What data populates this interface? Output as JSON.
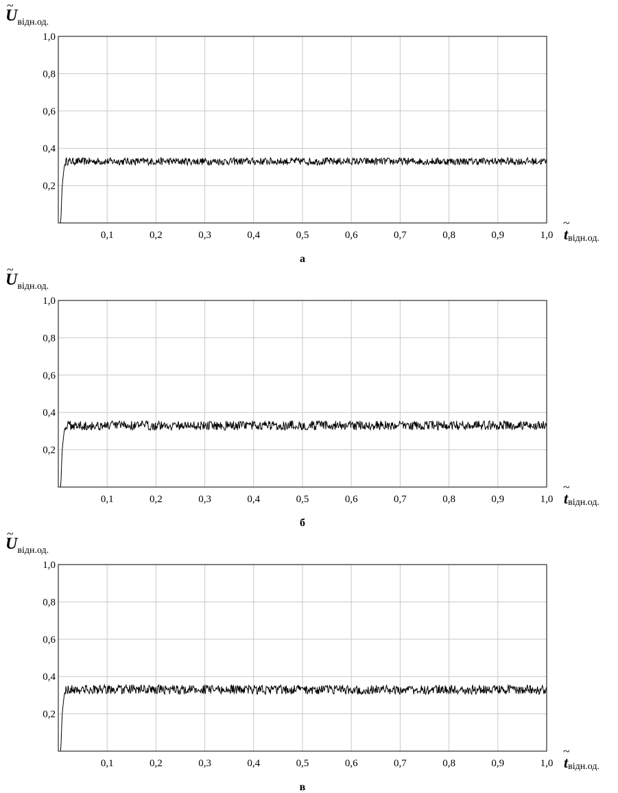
{
  "chart_data": [
    {
      "type": "line",
      "panel_label": "а",
      "ylabel": {
        "symbol": "U",
        "subscript": "відн.од."
      },
      "xlabel": {
        "symbol": "t",
        "subscript": "відн.од."
      },
      "xlim": [
        0,
        1.0
      ],
      "ylim": [
        0,
        1.0
      ],
      "x_ticks": [
        0.1,
        0.2,
        0.3,
        0.4,
        0.5,
        0.6,
        0.7,
        0.8,
        0.9,
        1.0
      ],
      "x_tick_labels": [
        "0,1",
        "0,2",
        "0,3",
        "0,4",
        "0,5",
        "0,6",
        "0,7",
        "0,8",
        "0,9",
        "1,0"
      ],
      "y_ticks": [
        0.2,
        0.4,
        0.6,
        0.8,
        1.0
      ],
      "y_tick_labels": [
        "0,2",
        "0,4",
        "0,6",
        "0,8",
        "1,0"
      ],
      "grid": true,
      "series": [
        {
          "color": "#000000",
          "x": [
            0,
            0.005,
            0.008,
            0.01,
            0.012,
            0.015,
            0.02,
            0.1,
            0.2,
            0.3,
            0.4,
            0.5,
            0.6,
            0.7,
            0.8,
            0.9,
            1.0
          ],
          "y": [
            0,
            0,
            0.2,
            0.25,
            0.3,
            0.33,
            0.33,
            0.33,
            0.33,
            0.33,
            0.33,
            0.33,
            0.33,
            0.33,
            0.33,
            0.33,
            0.33
          ],
          "noise_amplitude": 0.02
        }
      ]
    },
    {
      "type": "line",
      "panel_label": "б",
      "ylabel": {
        "symbol": "U",
        "subscript": "відн.од."
      },
      "xlabel": {
        "symbol": "t",
        "subscript": "відн.од."
      },
      "xlim": [
        0,
        1.0
      ],
      "ylim": [
        0,
        1.0
      ],
      "x_ticks": [
        0.1,
        0.2,
        0.3,
        0.4,
        0.5,
        0.6,
        0.7,
        0.8,
        0.9,
        1.0
      ],
      "x_tick_labels": [
        "0,1",
        "0,2",
        "0,3",
        "0,4",
        "0,5",
        "0,6",
        "0,7",
        "0,8",
        "0,9",
        "1,0"
      ],
      "y_ticks": [
        0.2,
        0.4,
        0.6,
        0.8,
        1.0
      ],
      "y_tick_labels": [
        "0,2",
        "0,4",
        "0,6",
        "0,8",
        "1,0"
      ],
      "grid": true,
      "series": [
        {
          "color": "#000000",
          "x": [
            0,
            0.005,
            0.008,
            0.01,
            0.012,
            0.015,
            0.02,
            0.1,
            0.2,
            0.3,
            0.4,
            0.5,
            0.6,
            0.7,
            0.8,
            0.9,
            1.0
          ],
          "y": [
            0,
            0,
            0.2,
            0.25,
            0.3,
            0.33,
            0.33,
            0.33,
            0.33,
            0.33,
            0.33,
            0.33,
            0.33,
            0.33,
            0.33,
            0.33,
            0.33
          ],
          "noise_amplitude": 0.025
        }
      ]
    },
    {
      "type": "line",
      "panel_label": "в",
      "ylabel": {
        "symbol": "U",
        "subscript": "відн.од."
      },
      "xlabel": {
        "symbol": "t",
        "subscript": "відн.од."
      },
      "xlim": [
        0,
        1.0
      ],
      "ylim": [
        0,
        1.0
      ],
      "x_ticks": [
        0.1,
        0.2,
        0.3,
        0.4,
        0.5,
        0.6,
        0.7,
        0.8,
        0.9,
        1.0
      ],
      "x_tick_labels": [
        "0,1",
        "0,2",
        "0,3",
        "0,4",
        "0,5",
        "0,6",
        "0,7",
        "0,8",
        "0,9",
        "1,0"
      ],
      "y_ticks": [
        0.2,
        0.4,
        0.6,
        0.8,
        1.0
      ],
      "y_tick_labels": [
        "0,2",
        "0,4",
        "0,6",
        "0,8",
        "1,0"
      ],
      "grid": true,
      "series": [
        {
          "color": "#000000",
          "x": [
            0,
            0.005,
            0.008,
            0.01,
            0.012,
            0.015,
            0.02,
            0.1,
            0.2,
            0.3,
            0.4,
            0.5,
            0.6,
            0.7,
            0.8,
            0.9,
            1.0
          ],
          "y": [
            0,
            0,
            0.2,
            0.25,
            0.3,
            0.33,
            0.33,
            0.33,
            0.33,
            0.33,
            0.33,
            0.33,
            0.33,
            0.33,
            0.33,
            0.33,
            0.33
          ],
          "noise_amplitude": 0.025
        }
      ]
    }
  ]
}
